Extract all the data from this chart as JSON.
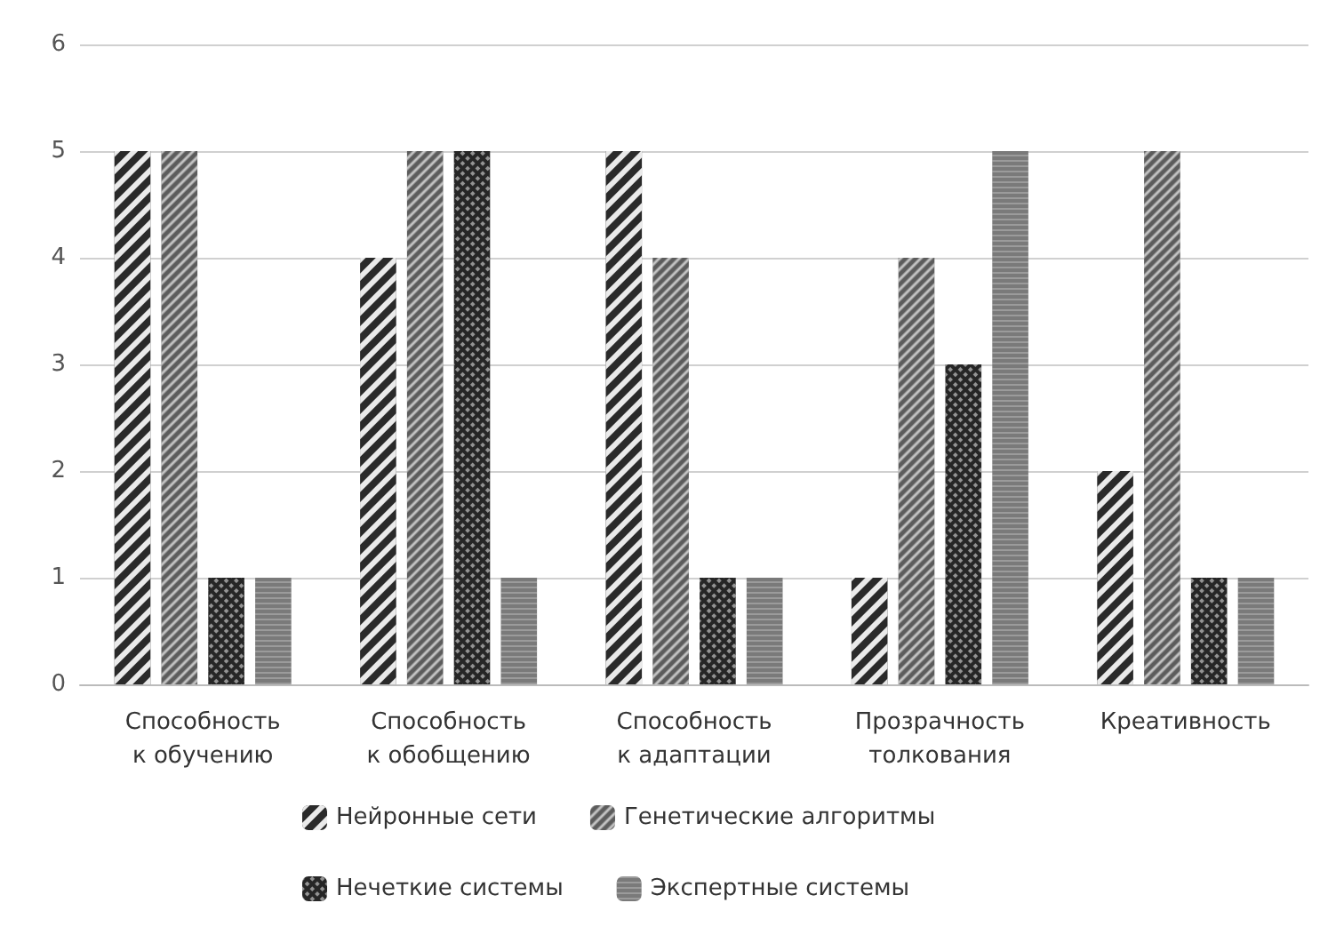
{
  "chart_data": {
    "type": "bar",
    "categories": [
      "Способность к обучению",
      "Способность к обобщению",
      "Способность к адаптации",
      "Прозрачность толкования",
      "Креативность"
    ],
    "series": [
      {
        "name": "Нейронные сети",
        "color": "#2a2a2a",
        "values": [
          5,
          4,
          5,
          1,
          2
        ]
      },
      {
        "name": "Генетические алгоритмы",
        "color": "#5c5c5c",
        "values": [
          5,
          5,
          4,
          4,
          5
        ]
      },
      {
        "name": "Нечеткие системы",
        "color": "#262626",
        "values": [
          1,
          5,
          1,
          3,
          1
        ]
      },
      {
        "name": "Экспертные системы",
        "color": "#7a7a7a",
        "values": [
          1,
          1,
          1,
          5,
          1
        ]
      }
    ],
    "ylim": [
      0,
      6
    ],
    "yticks": [
      0,
      1,
      2,
      3,
      4,
      5,
      6
    ],
    "grid": "y",
    "legend": "bottom"
  }
}
